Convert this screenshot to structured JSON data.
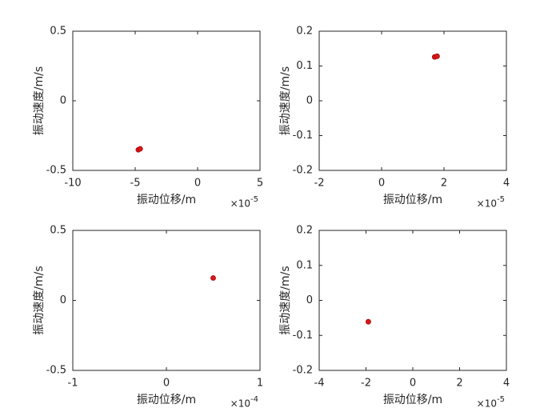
{
  "chart_data": [
    {
      "type": "scatter",
      "xlabel": "振动位移/m",
      "ylabel": "振动速度/m/s",
      "x_scale": "×10",
      "x_scale_exponent": "-5",
      "color": "#d7191c",
      "x": [
        -4.75,
        -4.6
      ],
      "y": [
        -0.352,
        -0.345
      ],
      "xlim": [
        -10,
        5
      ],
      "xticks": [
        -10,
        -5,
        0,
        5
      ],
      "ylim": [
        -0.5,
        0.5
      ],
      "yticks": [
        -0.5,
        0,
        0.5
      ]
    },
    {
      "type": "scatter",
      "xlabel": "振动位移/m",
      "ylabel": "振动速度/m/s",
      "x_scale": "×10",
      "x_scale_exponent": "-5",
      "color": "#d7191c",
      "x": [
        1.7,
        1.78
      ],
      "y": [
        0.126,
        0.128
      ],
      "xlim": [
        -2,
        4
      ],
      "xticks": [
        -2,
        0,
        2,
        4
      ],
      "ylim": [
        -0.2,
        0.2
      ],
      "yticks": [
        -0.2,
        -0.1,
        0,
        0.1,
        0.2
      ]
    },
    {
      "type": "scatter",
      "xlabel": "振动位移/m",
      "ylabel": "振动速度/m/s",
      "x_scale": "×10",
      "x_scale_exponent": "-4",
      "color": "#d7191c",
      "x": [
        0.5
      ],
      "y": [
        0.16
      ],
      "xlim": [
        -1,
        1
      ],
      "xticks": [
        -1,
        0,
        1
      ],
      "ylim": [
        -0.5,
        0.5
      ],
      "yticks": [
        -0.5,
        0,
        0.5
      ]
    },
    {
      "type": "scatter",
      "xlabel": "振动位移/m",
      "ylabel": "振动速度/m/s",
      "x_scale": "×10",
      "x_scale_exponent": "-5",
      "color": "#d7191c",
      "x": [
        -1.9
      ],
      "y": [
        -0.061
      ],
      "xlim": [
        -4,
        4
      ],
      "xticks": [
        -4,
        -2,
        0,
        2,
        4
      ],
      "ylim": [
        -0.2,
        0.2
      ],
      "yticks": [
        -0.2,
        -0.1,
        0,
        0.1,
        0.2
      ]
    }
  ]
}
